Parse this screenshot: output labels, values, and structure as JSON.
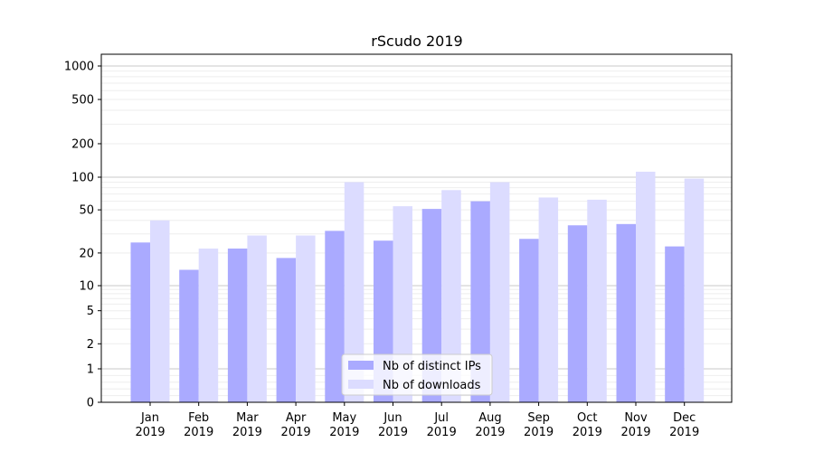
{
  "chart_data": {
    "type": "bar",
    "title": "rScudo 2019",
    "xlabel": "",
    "ylabel": "",
    "yscale": "symlog",
    "ylim": [
      0,
      1200
    ],
    "yticks": [
      0,
      1,
      2,
      5,
      10,
      20,
      50,
      100,
      200,
      500,
      1000
    ],
    "ytick_labels": [
      "0",
      "1",
      "2",
      "5",
      "10",
      "20",
      "50",
      "100",
      "200",
      "500",
      "1000"
    ],
    "grid": true,
    "legend_position": "bottom-center",
    "categories": [
      {
        "month": "Jan",
        "year": "2019"
      },
      {
        "month": "Feb",
        "year": "2019"
      },
      {
        "month": "Mar",
        "year": "2019"
      },
      {
        "month": "Apr",
        "year": "2019"
      },
      {
        "month": "May",
        "year": "2019"
      },
      {
        "month": "Jun",
        "year": "2019"
      },
      {
        "month": "Jul",
        "year": "2019"
      },
      {
        "month": "Aug",
        "year": "2019"
      },
      {
        "month": "Sep",
        "year": "2019"
      },
      {
        "month": "Oct",
        "year": "2019"
      },
      {
        "month": "Nov",
        "year": "2019"
      },
      {
        "month": "Dec",
        "year": "2019"
      }
    ],
    "series": [
      {
        "name": "Nb of distinct IPs",
        "color": "#aaaaff",
        "values": [
          25,
          14,
          22,
          18,
          32,
          26,
          51,
          60,
          27,
          36,
          37,
          23
        ]
      },
      {
        "name": "Nb of downloads",
        "color": "#dcdcff",
        "values": [
          40,
          22,
          29,
          29,
          90,
          54,
          76,
          90,
          65,
          62,
          112,
          97
        ]
      }
    ]
  }
}
